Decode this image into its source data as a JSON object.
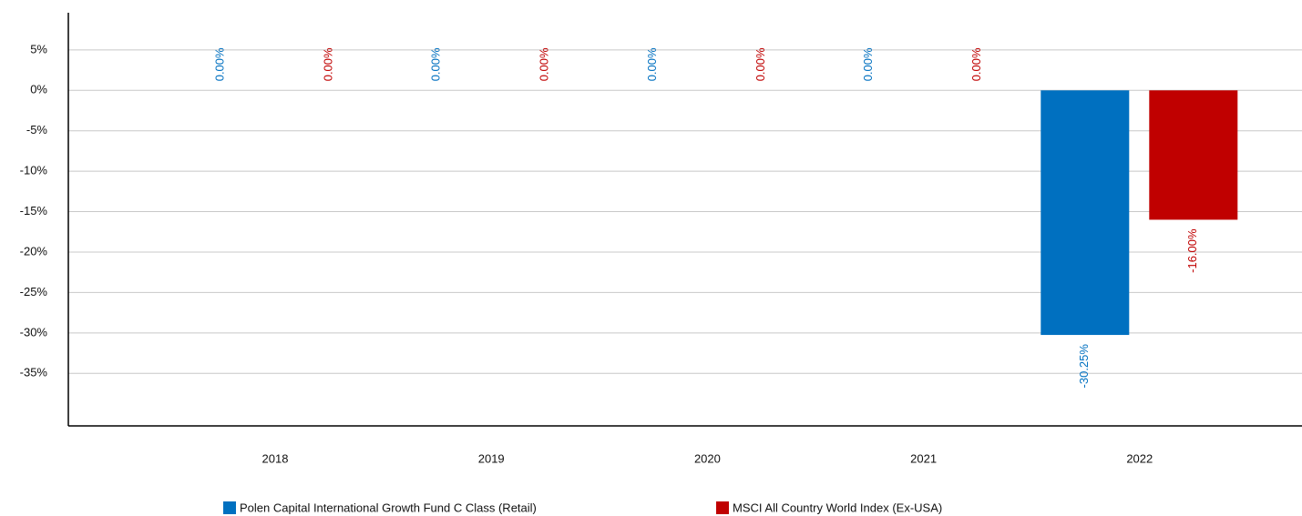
{
  "chart_data": {
    "type": "bar",
    "categories": [
      "2018",
      "2019",
      "2020",
      "2021",
      "2022"
    ],
    "series": [
      {
        "name": "Polen Capital International Growth Fund C Class (Retail)",
        "color": "#0070c0",
        "values": [
          0,
          0,
          0,
          0,
          -30.25
        ],
        "value_labels": [
          "0.00%",
          "0.00%",
          "0.00%",
          "0.00%",
          "-30.25%"
        ]
      },
      {
        "name": "MSCI All Country World Index (Ex-USA)",
        "color": "#c00000",
        "values": [
          0,
          0,
          0,
          0,
          -16
        ],
        "value_labels": [
          "0.00%",
          "0.00%",
          "0.00%",
          "0.00%",
          "-16.00%"
        ]
      }
    ],
    "ylim": [
      -41.5,
      9.6
    ],
    "yticks": [
      {
        "value": 5,
        "label": "5%"
      },
      {
        "value": 0,
        "label": "0%"
      },
      {
        "value": -5,
        "label": "-5%"
      },
      {
        "value": -10,
        "label": "-10%"
      },
      {
        "value": -15,
        "label": "-15%"
      },
      {
        "value": -20,
        "label": "-20%"
      },
      {
        "value": -25,
        "label": "-25%"
      },
      {
        "value": -30,
        "label": "-30%"
      },
      {
        "value": -35,
        "label": "-35%"
      }
    ],
    "grid": true,
    "legend": "bottom"
  }
}
